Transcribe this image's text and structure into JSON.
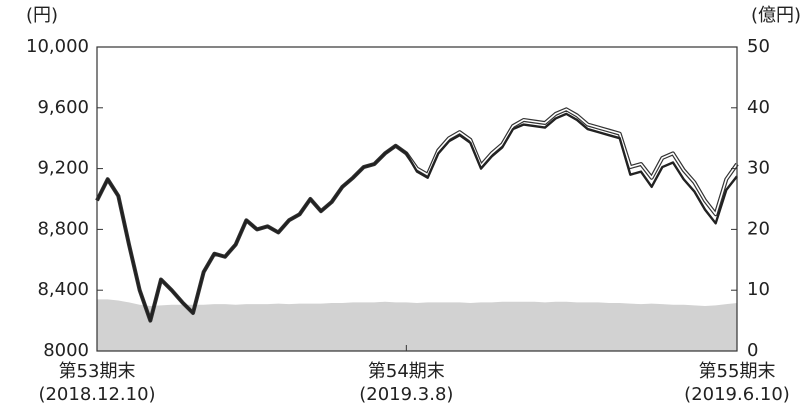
{
  "chart_data": {
    "type": "line",
    "y_unit_label": "(円)",
    "y2_unit_label": "(億円)",
    "categories": [
      "第53期末",
      null,
      null,
      null,
      null,
      null,
      null,
      null,
      null,
      null,
      null,
      null,
      null,
      null,
      null,
      null,
      null,
      null,
      null,
      null,
      null,
      null,
      null,
      null,
      null,
      null,
      null,
      null,
      null,
      "第54期末",
      null,
      null,
      null,
      null,
      null,
      null,
      null,
      null,
      null,
      null,
      null,
      null,
      null,
      null,
      null,
      null,
      null,
      null,
      null,
      null,
      null,
      null,
      null,
      null,
      null,
      null,
      null,
      null,
      null,
      null,
      "第55期末"
    ],
    "category_dates": [
      "(2018.12.10)",
      null,
      null,
      null,
      null,
      null,
      null,
      null,
      null,
      null,
      null,
      null,
      null,
      null,
      null,
      null,
      null,
      null,
      null,
      null,
      null,
      null,
      null,
      null,
      null,
      null,
      null,
      null,
      null,
      "(2019.3.8)",
      null,
      null,
      null,
      null,
      null,
      null,
      null,
      null,
      null,
      null,
      null,
      null,
      null,
      null,
      null,
      null,
      null,
      null,
      null,
      null,
      null,
      null,
      null,
      null,
      null,
      null,
      null,
      null,
      null,
      null,
      "(2019.6.10)"
    ],
    "series": [
      {
        "style": "outlined",
        "color": "#333333",
        "values": [
          8990,
          9130,
          9020,
          8700,
          8400,
          8200,
          8470,
          8400,
          8320,
          8250,
          8520,
          8640,
          8620,
          8700,
          8860,
          8800,
          8820,
          8780,
          8860,
          8900,
          9000,
          8920,
          8980,
          9080,
          9140,
          9210,
          9230,
          9300,
          9350,
          9300,
          9200,
          9160,
          9320,
          9400,
          9440,
          9390,
          9220,
          9300,
          9360,
          9480,
          9520,
          9510,
          9500,
          9560,
          9590,
          9550,
          9490,
          9470,
          9450,
          9430,
          9210,
          9230,
          9140,
          9270,
          9300,
          9190,
          9110,
          8990,
          8900,
          9130,
          9230
        ]
      },
      {
        "style": "solid",
        "color": "#222222",
        "values": [
          8990,
          9130,
          9020,
          8700,
          8400,
          8200,
          8470,
          8400,
          8320,
          8250,
          8520,
          8640,
          8620,
          8700,
          8860,
          8800,
          8820,
          8780,
          8860,
          8900,
          9000,
          8920,
          8980,
          9080,
          9140,
          9210,
          9230,
          9300,
          9350,
          9300,
          9180,
          9140,
          9300,
          9380,
          9420,
          9370,
          9200,
          9280,
          9340,
          9460,
          9490,
          9480,
          9470,
          9530,
          9560,
          9520,
          9460,
          9440,
          9420,
          9400,
          9160,
          9180,
          9080,
          9210,
          9240,
          9130,
          9050,
          8930,
          8840,
          9060,
          9150
        ]
      },
      {
        "style": "area",
        "axis": "y2",
        "color": "#d2d2d2",
        "values": [
          8.5,
          8.5,
          8.3,
          8,
          7.6,
          7.4,
          7.5,
          7.6,
          7.6,
          7.6,
          7.6,
          7.7,
          7.7,
          7.6,
          7.7,
          7.7,
          7.7,
          7.8,
          7.7,
          7.8,
          7.8,
          7.8,
          7.9,
          7.9,
          8,
          8,
          8,
          8.1,
          8,
          8,
          7.9,
          8,
          8,
          8,
          8,
          7.9,
          8,
          8,
          8.1,
          8.1,
          8.1,
          8.1,
          8,
          8.1,
          8.1,
          8,
          8,
          8,
          7.9,
          7.9,
          7.8,
          7.7,
          7.8,
          7.7,
          7.6,
          7.6,
          7.5,
          7.4,
          7.5,
          7.7,
          7.9
        ]
      }
    ],
    "ylim": [
      8000,
      10000
    ],
    "yticks": [
      8000,
      {
        "value": 8400,
        "label": "8,400"
      },
      {
        "value": 8800,
        "label": "8,800"
      },
      {
        "value": 9200,
        "label": "9,200"
      },
      {
        "value": 9600,
        "label": "9,600"
      },
      {
        "value": 10000,
        "label": "10,000"
      }
    ],
    "y2lim": [
      0,
      50
    ],
    "y2ticks": [
      0,
      10,
      20,
      30,
      40,
      50
    ],
    "grid": false
  }
}
